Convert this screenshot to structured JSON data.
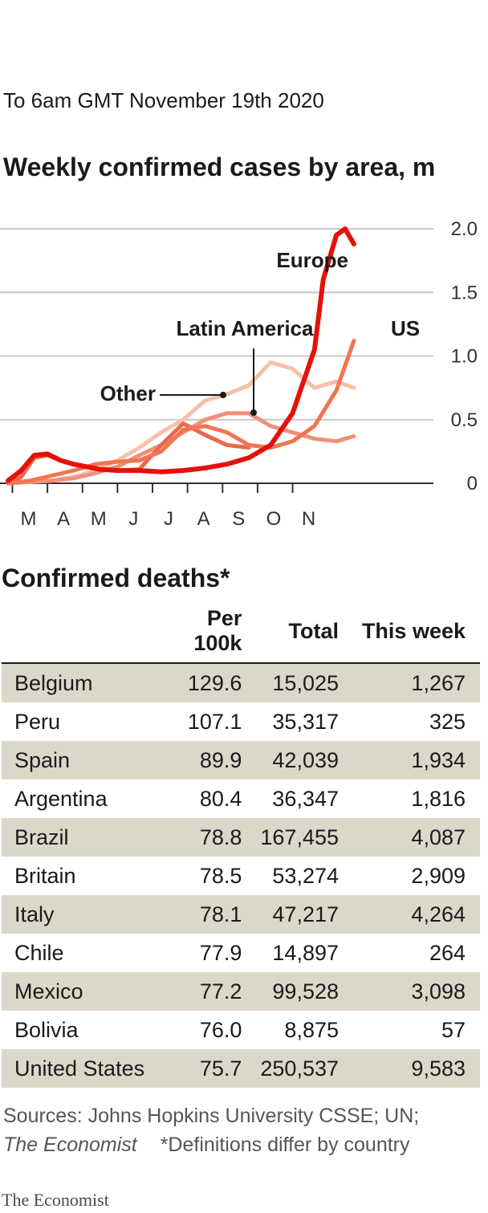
{
  "subtitle": "To 6am GMT November 19th 2020",
  "deaths": {
    "title": "Confirmed deaths*",
    "columns": [
      "",
      "Per 100k",
      "Total",
      "This week"
    ],
    "rows": [
      [
        "Belgium",
        "129.6",
        "15,025",
        "1,267"
      ],
      [
        "Peru",
        "107.1",
        "35,317",
        "325"
      ],
      [
        "Spain",
        "89.9",
        "42,039",
        "1,934"
      ],
      [
        "Argentina",
        "80.4",
        "36,347",
        "1,816"
      ],
      [
        "Brazil",
        "78.8",
        "167,455",
        "4,087"
      ],
      [
        "Britain",
        "78.5",
        "53,274",
        "2,909"
      ],
      [
        "Italy",
        "78.1",
        "47,217",
        "4,264"
      ],
      [
        "Chile",
        "77.9",
        "14,897",
        "264"
      ],
      [
        "Mexico",
        "77.2",
        "99,528",
        "3,098"
      ],
      [
        "Bolivia",
        "76.0",
        "8,875",
        "57"
      ],
      [
        "United States",
        "75.7",
        "250,537",
        "9,583"
      ]
    ]
  },
  "source": {
    "line1": "Sources: Johns Hopkins University CSSE; UN;",
    "publication": "The Economist",
    "note": "*Definitions differ by country"
  },
  "brand": "The Economist",
  "chart_data": {
    "type": "line",
    "title": "Weekly confirmed cases by area, m",
    "x_tick_labels": [
      "M",
      "A",
      "M",
      "J",
      "J",
      "A",
      "S",
      "O",
      "N"
    ],
    "y_ticks": [
      0,
      0.5,
      1.0,
      1.5,
      2.0
    ],
    "y_tick_labels": [
      "0",
      "0.5",
      "1.0",
      "1.5",
      "2.0"
    ],
    "ylim": [
      0,
      2.0
    ],
    "x_unit": "months since start of March 2020",
    "xlim": [
      0,
      8.8
    ],
    "grid": true,
    "series": [
      {
        "name": "Other",
        "color": "#f6c0aa",
        "x": [
          0,
          0.5,
          1,
          1.5,
          2,
          2.5,
          3,
          3.5,
          4,
          4.5,
          5,
          5.5,
          6,
          6.5,
          7,
          7.5,
          7.9
        ],
        "y": [
          0,
          0.01,
          0.02,
          0.05,
          0.1,
          0.18,
          0.28,
          0.4,
          0.5,
          0.65,
          0.7,
          0.77,
          0.95,
          0.9,
          0.75,
          0.8,
          0.75
        ]
      },
      {
        "name": "Latin America",
        "color": "#f0907a",
        "x": [
          0,
          0.5,
          1,
          1.5,
          2,
          2.5,
          3,
          3.5,
          4,
          4.5,
          5,
          5.5,
          6,
          6.5,
          7,
          7.5,
          7.9
        ],
        "y": [
          0,
          0.01,
          0.02,
          0.04,
          0.08,
          0.13,
          0.22,
          0.3,
          0.4,
          0.5,
          0.55,
          0.55,
          0.45,
          0.4,
          0.35,
          0.33,
          0.37
        ]
      },
      {
        "name": "",
        "color": "#e8694d",
        "x": [
          0,
          0.3,
          0.6,
          0.9,
          1.2,
          1.5,
          1.8,
          2.1,
          2.5,
          3,
          3.5,
          4,
          4.5,
          5,
          5.5
        ],
        "y": [
          0,
          0.05,
          0.2,
          0.22,
          0.18,
          0.15,
          0.13,
          0.11,
          0.1,
          0.11,
          0.3,
          0.47,
          0.38,
          0.3,
          0.28
        ]
      },
      {
        "name": "US",
        "color": "#f27452",
        "x": [
          0,
          0.5,
          1,
          1.5,
          2,
          2.5,
          3,
          3.5,
          4,
          4.5,
          5,
          5.5,
          6,
          6.5,
          7,
          7.5,
          7.9
        ],
        "y": [
          0,
          0.02,
          0.06,
          0.1,
          0.15,
          0.17,
          0.18,
          0.25,
          0.42,
          0.45,
          0.4,
          0.3,
          0.28,
          0.33,
          0.45,
          0.73,
          1.12
        ]
      },
      {
        "name": "Europe",
        "color": "#e3120b",
        "x": [
          0,
          0.3,
          0.6,
          0.9,
          1.2,
          1.5,
          1.8,
          2.1,
          2.5,
          3,
          3.5,
          4,
          4.5,
          5,
          5.5,
          6,
          6.5,
          7,
          7.2,
          7.5,
          7.7,
          7.9
        ],
        "y": [
          0.02,
          0.1,
          0.22,
          0.23,
          0.18,
          0.15,
          0.13,
          0.11,
          0.1,
          0.1,
          0.09,
          0.1,
          0.12,
          0.15,
          0.2,
          0.3,
          0.55,
          1.05,
          1.6,
          1.95,
          2.0,
          1.88
        ]
      }
    ]
  }
}
